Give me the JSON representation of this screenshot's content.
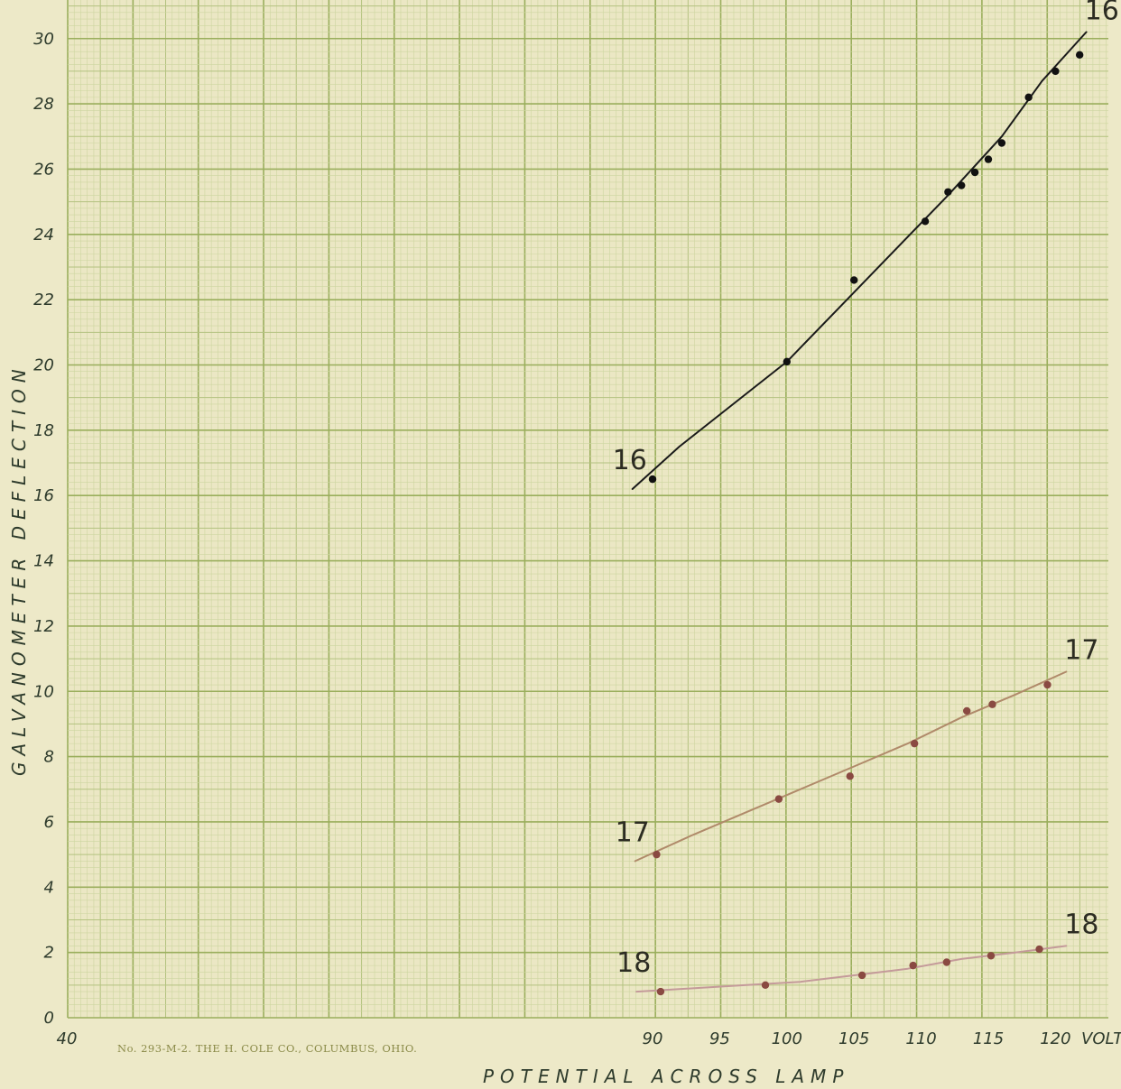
{
  "chart_data": {
    "type": "line",
    "xlabel": "POTENTIAL ACROSS LAMP",
    "x_unit_label": "VOLT",
    "ylabel": "GALVANOMETER DEFLECTION",
    "x_tick_labels": [
      "40",
      "90",
      "95",
      "100",
      "105",
      "110",
      "115",
      "120"
    ],
    "y_tick_labels": [
      "0",
      "2",
      "4",
      "6",
      "8",
      "10",
      "12",
      "14",
      "16",
      "18",
      "20",
      "22",
      "24",
      "26",
      "28",
      "30"
    ],
    "ylim": [
      0,
      30
    ],
    "grid": true,
    "series": [
      {
        "name": "16",
        "color": "#1a1a1a",
        "points": [
          [
            90,
            16.5
          ],
          [
            100,
            20.1
          ],
          [
            105,
            22.6
          ],
          [
            110.3,
            24.4
          ],
          [
            112,
            25.3
          ],
          [
            113,
            25.5
          ],
          [
            114,
            25.9
          ],
          [
            115,
            26.3
          ],
          [
            116,
            26.8
          ],
          [
            118,
            28.2
          ],
          [
            120,
            29.0
          ],
          [
            121.8,
            29.5
          ]
        ],
        "fit": [
          [
            88.5,
            16.2
          ],
          [
            92,
            17.5
          ],
          [
            96,
            18.8
          ],
          [
            100,
            20.1
          ],
          [
            104,
            21.8
          ],
          [
            108,
            23.5
          ],
          [
            112,
            25.2
          ],
          [
            116,
            27.0
          ],
          [
            119,
            28.7
          ],
          [
            122.3,
            30.2
          ]
        ]
      },
      {
        "name": "17",
        "color": "#b08a6a",
        "points": [
          [
            90.3,
            5.0
          ],
          [
            99.4,
            6.7
          ],
          [
            104.7,
            7.4
          ],
          [
            109.5,
            8.4
          ],
          [
            113.4,
            9.4
          ],
          [
            115.3,
            9.6
          ],
          [
            119.4,
            10.2
          ]
        ],
        "fit": [
          [
            88.7,
            4.8
          ],
          [
            93,
            5.6
          ],
          [
            97,
            6.3
          ],
          [
            101,
            7.0
          ],
          [
            105,
            7.7
          ],
          [
            109,
            8.4
          ],
          [
            113,
            9.2
          ],
          [
            117,
            9.9
          ],
          [
            120.8,
            10.6
          ]
        ]
      },
      {
        "name": "18",
        "color": "#c49a9a",
        "points": [
          [
            90.6,
            0.8
          ],
          [
            98.4,
            1.0
          ],
          [
            105.6,
            1.3
          ],
          [
            109.4,
            1.6
          ],
          [
            111.9,
            1.7
          ],
          [
            115.2,
            1.9
          ],
          [
            118.8,
            2.1
          ]
        ],
        "fit": [
          [
            88.8,
            0.8
          ],
          [
            93,
            0.9
          ],
          [
            97,
            1.0
          ],
          [
            101,
            1.1
          ],
          [
            105,
            1.3
          ],
          [
            109,
            1.5
          ],
          [
            113,
            1.8
          ],
          [
            117,
            2.0
          ],
          [
            120.8,
            2.2
          ]
        ]
      }
    ]
  },
  "imprint": "No. 293-M-2.    THE H. COLE CO., COLUMBUS, OHIO."
}
